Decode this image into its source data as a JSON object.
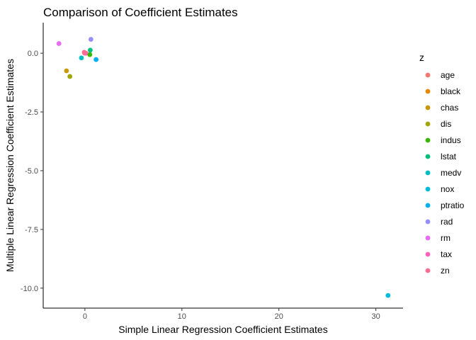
{
  "chart_data": {
    "type": "scatter",
    "title": "Comparison of Coefficient Estimates",
    "xlabel": "Simple Linear Regression Coefficient Estimates",
    "ylabel": "Multiple Linear Regression Coefficient Estimates",
    "xlim": [
      -4.3,
      32.8
    ],
    "ylim": [
      -10.85,
      1.3
    ],
    "x_ticks": [
      0,
      10,
      20,
      30
    ],
    "x_tick_labels": [
      "0",
      "10",
      "20",
      "30"
    ],
    "y_ticks": [
      0,
      -2.5,
      -5,
      -7.5,
      -10
    ],
    "y_tick_labels": [
      "0.0",
      "-2.5",
      "-5.0",
      "-7.5",
      "-10.0"
    ],
    "grid": false,
    "legend": {
      "title": "z",
      "position": "right"
    },
    "series": [
      {
        "name": "age",
        "color": "#F8766D",
        "x": 0.11,
        "y": 0.0
      },
      {
        "name": "black",
        "color": "#E58700",
        "x": -0.04,
        "y": 0.01
      },
      {
        "name": "chas",
        "color": "#C99800",
        "x": -1.9,
        "y": -0.75
      },
      {
        "name": "dis",
        "color": "#A3A500",
        "x": -1.55,
        "y": -0.99
      },
      {
        "name": "indus",
        "color": "#39B600",
        "x": 0.51,
        "y": -0.06
      },
      {
        "name": "lstat",
        "color": "#00BF7D",
        "x": 0.55,
        "y": 0.13
      },
      {
        "name": "medv",
        "color": "#00BFC4",
        "x": -0.36,
        "y": -0.2
      },
      {
        "name": "nox",
        "color": "#00BCD8",
        "x": 31.25,
        "y": -10.31
      },
      {
        "name": "ptratio",
        "color": "#00B0F6",
        "x": 1.15,
        "y": -0.27
      },
      {
        "name": "rad",
        "color": "#9590FF",
        "x": 0.62,
        "y": 0.59
      },
      {
        "name": "rm",
        "color": "#E76BF3",
        "x": -2.68,
        "y": 0.41
      },
      {
        "name": "tax",
        "color": "#FF62BC",
        "x": 0.03,
        "y": 0.0
      },
      {
        "name": "zn",
        "color": "#FF6C91",
        "x": -0.07,
        "y": 0.04
      }
    ]
  }
}
